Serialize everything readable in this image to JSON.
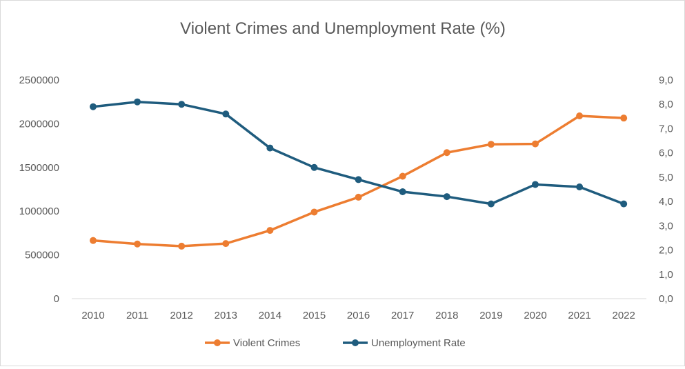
{
  "chart_data": {
    "type": "line",
    "title": "Violent Crimes and Unemployment Rate (%)",
    "categories": [
      "2010",
      "2011",
      "2012",
      "2013",
      "2014",
      "2015",
      "2016",
      "2017",
      "2018",
      "2019",
      "2020",
      "2021",
      "2022"
    ],
    "series": [
      {
        "name": "Violent Crimes",
        "axis": "left",
        "color": "#ED7D31",
        "values": [
          665000,
          625000,
          600000,
          630000,
          780000,
          990000,
          1160000,
          1400000,
          1670000,
          1765000,
          1770000,
          2090000,
          2065000
        ]
      },
      {
        "name": "Unemployment Rate",
        "axis": "right",
        "color": "#1F5C7E",
        "values": [
          7.9,
          8.1,
          8.0,
          7.6,
          6.2,
          5.4,
          4.9,
          4.4,
          4.2,
          3.9,
          4.7,
          4.6,
          3.9
        ]
      }
    ],
    "y_left": {
      "ylim": [
        0,
        2500000
      ],
      "ticks": [
        0,
        500000,
        1000000,
        1500000,
        2000000,
        2500000
      ],
      "tick_labels": [
        "0",
        "500000",
        "1000000",
        "1500000",
        "2000000",
        "2500000"
      ]
    },
    "y_right": {
      "ylim": [
        0,
        9
      ],
      "ticks": [
        0,
        1,
        2,
        3,
        4,
        5,
        6,
        7,
        8,
        9
      ],
      "tick_labels": [
        "0,0",
        "1,0",
        "2,0",
        "3,0",
        "4,0",
        "5,0",
        "6,0",
        "7,0",
        "8,0",
        "9,0"
      ]
    },
    "grid": false,
    "legend": "bottom"
  }
}
